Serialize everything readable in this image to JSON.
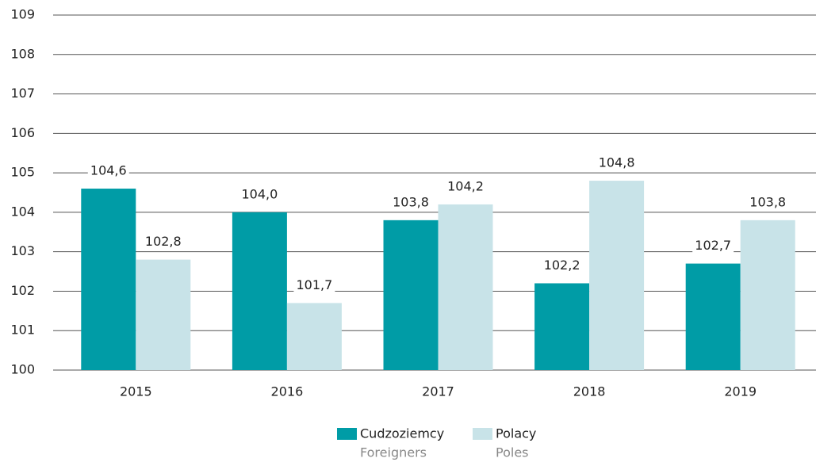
{
  "chart_data": {
    "type": "bar",
    "categories": [
      "2015",
      "2016",
      "2017",
      "2018",
      "2019"
    ],
    "series": [
      {
        "name": "Cudzoziemcy",
        "subname": "Foreigners",
        "color": "#009ca6",
        "values": [
          104.6,
          104.0,
          103.8,
          102.2,
          102.7
        ],
        "value_labels": [
          "104,6",
          "104,0",
          "103,8",
          "102,2",
          "102,7"
        ]
      },
      {
        "name": "Polacy",
        "subname": "Poles",
        "color": "#c8e3e8",
        "values": [
          102.8,
          101.7,
          104.2,
          104.8,
          103.8
        ],
        "value_labels": [
          "102,8",
          "101,7",
          "104,2",
          "104,8",
          "103,8"
        ]
      }
    ],
    "ylim": [
      100,
      109
    ],
    "yticks": [
      100,
      101,
      102,
      103,
      104,
      105,
      106,
      107,
      108,
      109
    ],
    "grid": true
  }
}
